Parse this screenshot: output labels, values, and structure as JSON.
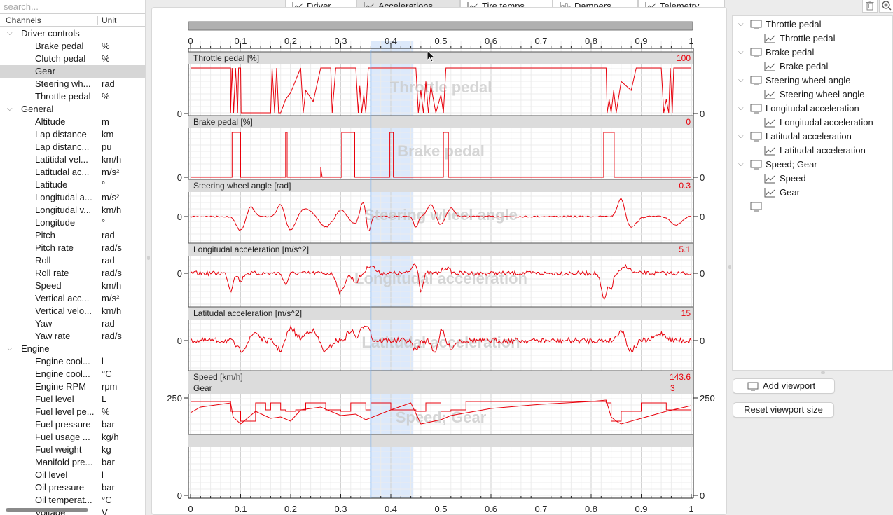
{
  "left_panel": {
    "search_placeholder": "search...",
    "columns": {
      "channel": "Channels",
      "unit": "Unit"
    },
    "groups": [
      {
        "name": "Driver controls",
        "items": [
          {
            "name": "Brake pedal",
            "unit": "%"
          },
          {
            "name": "Clutch pedal",
            "unit": "%"
          },
          {
            "name": "Gear",
            "unit": ""
          },
          {
            "name": "Steering wh...",
            "unit": "rad"
          },
          {
            "name": "Throttle pedal",
            "unit": "%"
          }
        ]
      },
      {
        "name": "General",
        "items": [
          {
            "name": "Altitude",
            "unit": "m"
          },
          {
            "name": "Lap distance",
            "unit": "km"
          },
          {
            "name": "Lap distanc...",
            "unit": "pu"
          },
          {
            "name": "Latitidal vel...",
            "unit": "km/h"
          },
          {
            "name": "Latitudal ac...",
            "unit": "m/s²"
          },
          {
            "name": "Latitude",
            "unit": "°"
          },
          {
            "name": "Longitudal a...",
            "unit": "m/s²"
          },
          {
            "name": "Longitudal v...",
            "unit": "km/h"
          },
          {
            "name": "Longitude",
            "unit": "°"
          },
          {
            "name": "Pitch",
            "unit": "rad"
          },
          {
            "name": "Pitch rate",
            "unit": "rad/s"
          },
          {
            "name": "Roll",
            "unit": "rad"
          },
          {
            "name": "Roll rate",
            "unit": "rad/s"
          },
          {
            "name": "Speed",
            "unit": "km/h"
          },
          {
            "name": "Vertical acc...",
            "unit": "m/s²"
          },
          {
            "name": "Vertical velo...",
            "unit": "km/h"
          },
          {
            "name": "Yaw",
            "unit": "rad"
          },
          {
            "name": "Yaw rate",
            "unit": "rad/s"
          }
        ]
      },
      {
        "name": "Engine",
        "items": [
          {
            "name": "Engine cool...",
            "unit": "l"
          },
          {
            "name": "Engine cool...",
            "unit": "°C"
          },
          {
            "name": "Engine RPM",
            "unit": "rpm"
          },
          {
            "name": "Fuel level",
            "unit": "L"
          },
          {
            "name": "Fuel level pe...",
            "unit": "%"
          },
          {
            "name": "Fuel pressure",
            "unit": "bar"
          },
          {
            "name": "Fuel usage ...",
            "unit": "kg/h"
          },
          {
            "name": "Fuel weight",
            "unit": "kg"
          },
          {
            "name": "Manifold pre...",
            "unit": "bar"
          },
          {
            "name": "Oil level",
            "unit": "l"
          },
          {
            "name": "Oil pressure",
            "unit": "bar"
          },
          {
            "name": "Oil temperat...",
            "unit": "°C"
          },
          {
            "name": "Voltage",
            "unit": "V"
          }
        ]
      }
    ],
    "selected_item": "Gear"
  },
  "tabs": [
    {
      "label": "Driver",
      "active": false
    },
    {
      "label": "Accelerations",
      "active": true
    },
    {
      "label": "Tire temps",
      "active": false
    },
    {
      "label": "Dampers",
      "active": false
    },
    {
      "label": "Telemetry",
      "active": false
    }
  ],
  "plot": {
    "x_ticks": [
      "0",
      "0.1",
      "0.2",
      "0.3",
      "0.4",
      "0.5",
      "0.6",
      "0.7",
      "0.8",
      "0.9",
      "1"
    ],
    "x_range": [
      0,
      1
    ],
    "cursor_x": 0.36,
    "selection_range": [
      0.36,
      0.445
    ],
    "colors": {
      "trace": "#e8000b",
      "value": "#e8000b",
      "cursor": "#6aa8f0",
      "selection": "#dce9fb",
      "header": "#dcdcdc",
      "watermark": "#c8c8c8"
    },
    "subplots": [
      {
        "label": "Throttle pedal [%]",
        "watermark": "Throttle pedal",
        "value": "100",
        "left_ticks": [
          "0"
        ],
        "right_ticks": [
          "0"
        ]
      },
      {
        "label": "Brake pedal [%]",
        "watermark": "Brake pedal",
        "value": "0",
        "left_ticks": [
          "0"
        ],
        "right_ticks": [
          "0"
        ]
      },
      {
        "label": "Steering wheel angle [rad]",
        "watermark": "Steering wheel angle",
        "value": "0.3",
        "left_ticks": [
          "0"
        ],
        "right_ticks": [
          "0"
        ]
      },
      {
        "label": "Longitudal acceleration [m/s^2]",
        "watermark": "Longitudal acceleration",
        "value": "5.1",
        "left_ticks": [
          "0"
        ],
        "right_ticks": [
          "0"
        ]
      },
      {
        "label": "Latitudal acceleration [m/s^2]",
        "watermark": "Latitudal acceleration",
        "value": "15",
        "left_ticks": [
          "0"
        ],
        "right_ticks": [
          "0"
        ]
      },
      {
        "label": "Speed [km/h]",
        "label2": "Gear",
        "watermark": "Speed; Gear",
        "value": "143.6",
        "value2": "3",
        "left_ticks": [
          "250"
        ],
        "right_ticks": [
          "250"
        ]
      },
      {
        "label": "",
        "watermark": "",
        "value": "",
        "left_ticks": [
          "0"
        ],
        "right_ticks": [
          "0"
        ]
      }
    ]
  },
  "viewports": [
    {
      "name": "Throttle pedal",
      "channels": [
        "Throttle pedal"
      ]
    },
    {
      "name": "Brake pedal",
      "channels": [
        "Brake pedal"
      ]
    },
    {
      "name": "Steering wheel angle",
      "channels": [
        "Steering wheel angle"
      ]
    },
    {
      "name": "Longitudal acceleration",
      "channels": [
        "Longitudal acceleration"
      ]
    },
    {
      "name": "Latitudal acceleration",
      "channels": [
        "Latitudal acceleration"
      ]
    },
    {
      "name": "Speed; Gear",
      "channels": [
        "Speed",
        "Gear"
      ]
    },
    {
      "name": "",
      "channels": []
    }
  ],
  "buttons": {
    "add_viewport": "Add viewport",
    "reset_viewport": "Reset viewport size"
  },
  "icons": {
    "tab": "line-chart-icon",
    "dampers": "bar-chart-icon",
    "viewport": "monitor-icon",
    "trash": "trash-icon",
    "zoom": "zoom-icon"
  }
}
